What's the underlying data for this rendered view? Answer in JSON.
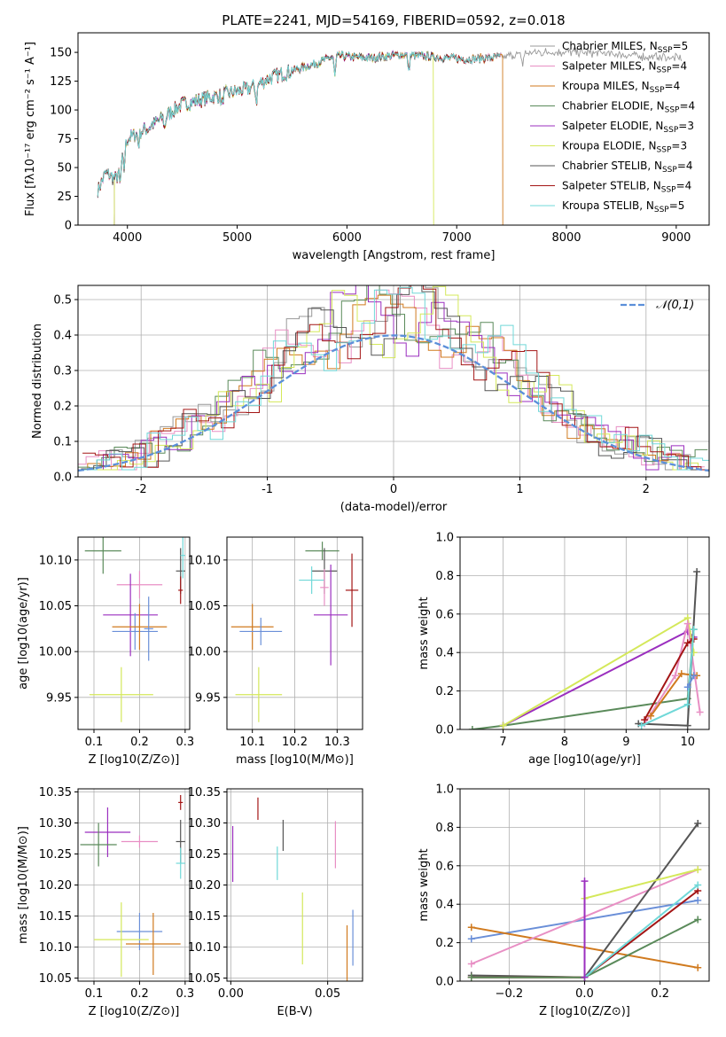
{
  "title": "PLATE=2241, MJD=54169, FIBERID=0592, z=0.018",
  "colors": {
    "Chabrier MILES": "#999999",
    "Salpeter MILES": "#e88fc4",
    "Kroupa MILES": "#d07a1e",
    "Chabrier ELODIE": "#5a8a5a",
    "Salpeter ELODIE": "#9b2fbf",
    "Kroupa ELODIE": "#d4e85a",
    "Chabrier STELIB": "#555555",
    "Salpeter STELIB": "#a31515",
    "Kroupa STELIB": "#70d8d8",
    "Chabrier MILES (wt)": "#6a8fd8",
    "normal": "#5b8fd9"
  },
  "chart_data": [
    {
      "id": "spectrum",
      "type": "line",
      "xlabel": "wavelength [Angstrom, rest frame]",
      "ylabel": "Flux [f_λ 10^-17 erg cm^-2 s^-1 A^-1]",
      "xlim": [
        3550,
        9300
      ],
      "ylim": [
        0,
        167
      ],
      "xticks": [
        4000,
        5000,
        6000,
        7000,
        8000,
        9000
      ],
      "yticks": [
        0,
        25,
        50,
        75,
        100,
        125,
        150
      ],
      "grid": false,
      "legend_position": "right",
      "series": [
        {
          "name": "Chabrier MILES, N_SSP=5",
          "color_key": "Chabrier MILES",
          "range": [
            3730,
            9050
          ]
        },
        {
          "name": "Salpeter MILES, N_SSP=4",
          "color_key": "Salpeter MILES",
          "range": [
            3730,
            7410
          ]
        },
        {
          "name": "Kroupa MILES, N_SSP=4",
          "color_key": "Kroupa MILES",
          "range": [
            3730,
            7420
          ],
          "drop_at": 7420
        },
        {
          "name": "Chabrier ELODIE, N_SSP=4",
          "color_key": "Chabrier ELODIE",
          "range": [
            3880,
            6790
          ]
        },
        {
          "name": "Salpeter ELODIE, N_SSP=3",
          "color_key": "Salpeter ELODIE",
          "range": [
            3880,
            6790
          ]
        },
        {
          "name": "Kroupa ELODIE, N_SSP=3",
          "color_key": "Kroupa ELODIE",
          "range": [
            3880,
            6790
          ],
          "drop_at": 6790
        },
        {
          "name": "Chabrier STELIB, N_SSP=4",
          "color_key": "Chabrier STELIB",
          "range": [
            3730,
            7400
          ]
        },
        {
          "name": "Salpeter STELIB, N_SSP=4",
          "color_key": "Salpeter STELIB",
          "range": [
            3730,
            7400
          ]
        },
        {
          "name": "Kroupa STELIB, N_SSP=5",
          "color_key": "Kroupa STELIB",
          "range": [
            3730,
            7400
          ]
        }
      ],
      "continuum_anchors": [
        [
          3730,
          30
        ],
        [
          3800,
          45
        ],
        [
          3900,
          40
        ],
        [
          4000,
          75
        ],
        [
          4200,
          85
        ],
        [
          4500,
          105
        ],
        [
          4800,
          112
        ],
        [
          5100,
          118
        ],
        [
          5300,
          128
        ],
        [
          5700,
          140
        ],
        [
          5900,
          147
        ],
        [
          6200,
          145
        ],
        [
          6500,
          148
        ],
        [
          6800,
          146
        ],
        [
          7100,
          144
        ],
        [
          7400,
          146
        ],
        [
          7700,
          150
        ],
        [
          8200,
          150
        ],
        [
          8600,
          147
        ],
        [
          9050,
          145
        ]
      ]
    },
    {
      "id": "residuals",
      "type": "line",
      "xlabel": "(data-model)/error",
      "ylabel": "Normed distribution",
      "xlim": [
        -2.5,
        2.5
      ],
      "ylim": [
        0,
        0.54
      ],
      "xticks": [
        -2,
        -1,
        0,
        1,
        2
      ],
      "yticks": [
        0.0,
        0.1,
        0.2,
        0.3,
        0.4,
        0.5
      ],
      "grid": true,
      "legend": [
        "𝒩(0,1)"
      ],
      "legend_position": "top-right",
      "gaussian": {
        "mean": 0,
        "sigma": 1
      }
    },
    {
      "id": "age-vs-Z",
      "type": "scatter",
      "xlabel": "Z [log10(Z/Z⊙)]",
      "ylabel": "age [log10(age/yr)]",
      "xlim": [
        0.065,
        0.31
      ],
      "ylim": [
        9.915,
        10.125
      ],
      "xticks": [
        0.1,
        0.2,
        0.3
      ],
      "yticks": [
        9.95,
        10.0,
        10.05,
        10.1
      ],
      "grid": true,
      "points": [
        {
          "c": "Chabrier ELODIE",
          "x": 0.12,
          "xe": 0.04,
          "y": 10.11,
          "ye": 0.025
        },
        {
          "c": "Salpeter MILES",
          "x": 0.2,
          "xe": 0.05,
          "y": 10.073,
          "ye": 0.015
        },
        {
          "c": "Salpeter ELODIE",
          "x": 0.18,
          "xe": 0.06,
          "y": 10.04,
          "ye": 0.045
        },
        {
          "c": "Chabrier MILES (wt)",
          "x": 0.19,
          "xe": 0.05,
          "y": 10.022,
          "ye": 0.02
        },
        {
          "c": "Kroupa MILES",
          "x": 0.2,
          "xe": 0.06,
          "y": 10.027,
          "ye": 0.025
        },
        {
          "c": "Chabrier MILES (wt)",
          "x": 0.22,
          "xe": 0.01,
          "y": 10.025,
          "ye": 0.035
        },
        {
          "c": "Kroupa ELODIE",
          "x": 0.16,
          "xe": 0.07,
          "y": 9.953,
          "ye": 0.03
        },
        {
          "c": "Chabrier STELIB",
          "x": 0.29,
          "xe": 0.01,
          "y": 10.088,
          "ye": 0.025
        },
        {
          "c": "Salpeter STELIB",
          "x": 0.29,
          "xe": 0.005,
          "y": 10.067,
          "ye": 0.015
        },
        {
          "c": "Kroupa STELIB",
          "x": 0.295,
          "xe": 0.005,
          "y": 10.105,
          "ye": 0.025
        }
      ]
    },
    {
      "id": "age-vs-mass",
      "type": "scatter",
      "xlabel": "mass [log10(M/M⊙)]",
      "ylabel": "",
      "xlim": [
        10.04,
        10.36
      ],
      "ylim": [
        9.915,
        10.125
      ],
      "xticks": [
        10.1,
        10.2,
        10.3
      ],
      "yticks": [
        9.95,
        10.0,
        10.05,
        10.1
      ],
      "grid": true,
      "points": [
        {
          "c": "Chabrier ELODIE",
          "x": 10.265,
          "xe": 0.04,
          "y": 10.11,
          "ye": 0.01
        },
        {
          "c": "Chabrier STELIB",
          "x": 10.27,
          "xe": 0.03,
          "y": 10.088,
          "ye": 0.025
        },
        {
          "c": "Kroupa STELIB",
          "x": 10.24,
          "xe": 0.03,
          "y": 10.078,
          "ye": 0.015
        },
        {
          "c": "Salpeter MILES",
          "x": 10.27,
          "xe": 0.01,
          "y": 10.07,
          "ye": 0.02
        },
        {
          "c": "Salpeter STELIB",
          "x": 10.335,
          "xe": 0.015,
          "y": 10.067,
          "ye": 0.04
        },
        {
          "c": "Salpeter ELODIE",
          "x": 10.285,
          "xe": 0.04,
          "y": 10.04,
          "ye": 0.055
        },
        {
          "c": "Kroupa MILES",
          "x": 10.1,
          "xe": 0.05,
          "y": 10.027,
          "ye": 0.025
        },
        {
          "c": "Chabrier MILES (wt)",
          "x": 10.12,
          "xe": 0.05,
          "y": 10.022,
          "ye": 0.015
        },
        {
          "c": "Kroupa ELODIE",
          "x": 10.115,
          "xe": 0.055,
          "y": 9.953,
          "ye": 0.03
        }
      ]
    },
    {
      "id": "mass-weight-vs-age",
      "type": "line",
      "xlabel": "age [log10(age/yr)]",
      "ylabel": "mass weight",
      "xlim": [
        6.3,
        10.35
      ],
      "ylim": [
        0,
        1.0
      ],
      "xticks": [
        7,
        8,
        9,
        10
      ],
      "yticks": [
        0.0,
        0.2,
        0.4,
        0.6,
        0.8,
        1.0
      ],
      "grid": true,
      "series": [
        {
          "c": "Chabrier ELODIE",
          "points": [
            [
              6.5,
              0.0
            ],
            [
              7.0,
              0.02
            ],
            [
              10.0,
              0.16
            ],
            [
              10.1,
              0.52
            ]
          ]
        },
        {
          "c": "Salpeter ELODIE",
          "points": [
            [
              7.0,
              0.02
            ],
            [
              10.0,
              0.51
            ],
            [
              10.1,
              0.48
            ]
          ]
        },
        {
          "c": "Kroupa ELODIE",
          "points": [
            [
              7.0,
              0.02
            ],
            [
              10.0,
              0.58
            ],
            [
              10.1,
              0.4
            ]
          ]
        },
        {
          "c": "Salpeter MILES",
          "points": [
            [
              9.3,
              0.03
            ],
            [
              9.8,
              0.28
            ],
            [
              10.0,
              0.55
            ],
            [
              10.2,
              0.09
            ]
          ]
        },
        {
          "c": "Kroupa MILES",
          "points": [
            [
              9.4,
              0.07
            ],
            [
              9.9,
              0.29
            ],
            [
              10.15,
              0.28
            ]
          ]
        },
        {
          "c": "Salpeter STELIB",
          "points": [
            [
              9.3,
              0.05
            ],
            [
              10.0,
              0.45
            ],
            [
              10.1,
              0.47
            ]
          ]
        },
        {
          "c": "Chabrier STELIB",
          "points": [
            [
              9.2,
              0.03
            ],
            [
              10.0,
              0.02
            ],
            [
              10.15,
              0.82
            ]
          ]
        },
        {
          "c": "Kroupa STELIB",
          "points": [
            [
              9.25,
              0.02
            ],
            [
              10.0,
              0.13
            ],
            [
              10.1,
              0.52
            ]
          ]
        },
        {
          "c": "Chabrier MILES (wt)",
          "points": [
            [
              10.0,
              0.22
            ],
            [
              10.1,
              0.28
            ]
          ]
        }
      ]
    },
    {
      "id": "mass-vs-Z",
      "type": "scatter",
      "xlabel": "Z [log10(Z/Z⊙)]",
      "ylabel": "mass [log10(M/M⊙)]",
      "xlim": [
        0.065,
        0.31
      ],
      "ylim": [
        10.045,
        10.355
      ],
      "xticks": [
        0.1,
        0.2,
        0.3
      ],
      "yticks": [
        10.05,
        10.1,
        10.15,
        10.2,
        10.25,
        10.3,
        10.35
      ],
      "grid": true,
      "points": [
        {
          "c": "Salpeter ELODIE",
          "x": 0.13,
          "xe": 0.05,
          "y": 10.285,
          "ye": 0.04
        },
        {
          "c": "Chabrier ELODIE",
          "x": 0.11,
          "xe": 0.04,
          "y": 10.265,
          "ye": 0.035
        },
        {
          "c": "Salpeter MILES",
          "x": 0.2,
          "xe": 0.04,
          "y": 10.27,
          "ye": 0.01
        },
        {
          "c": "Chabrier STELIB",
          "x": 0.29,
          "xe": 0.01,
          "y": 10.27,
          "ye": 0.035
        },
        {
          "c": "Salpeter STELIB",
          "x": 0.29,
          "xe": 0.005,
          "y": 10.333,
          "ye": 0.012
        },
        {
          "c": "Kroupa STELIB",
          "x": 0.29,
          "xe": 0.01,
          "y": 10.235,
          "ye": 0.025
        },
        {
          "c": "Chabrier MILES (wt)",
          "x": 0.2,
          "xe": 0.05,
          "y": 10.125,
          "ye": 0.03
        },
        {
          "c": "Kroupa ELODIE",
          "x": 0.16,
          "xe": 0.06,
          "y": 10.112,
          "ye": 0.06
        },
        {
          "c": "Kroupa MILES",
          "x": 0.23,
          "xe": 0.06,
          "y": 10.105,
          "ye": 0.05
        }
      ]
    },
    {
      "id": "mass-vs-EBV",
      "type": "scatter",
      "xlabel": "E(B-V)",
      "ylabel": "",
      "xlim": [
        -0.002,
        0.068
      ],
      "ylim": [
        10.045,
        10.355
      ],
      "xticks": [
        0.0,
        0.05
      ],
      "yticks": [
        10.05,
        10.1,
        10.15,
        10.2,
        10.25,
        10.3,
        10.35
      ],
      "grid": true,
      "points": [
        {
          "c": "Salpeter ELODIE",
          "x": 0.001,
          "xe": 0,
          "y": 10.25,
          "ye": 0.045
        },
        {
          "c": "Salpeter STELIB",
          "x": 0.014,
          "xe": 0,
          "y": 10.323,
          "ye": 0.018
        },
        {
          "c": "Chabrier STELIB",
          "x": 0.027,
          "xe": 0,
          "y": 10.28,
          "ye": 0.025
        },
        {
          "c": "Kroupa STELIB",
          "x": 0.024,
          "xe": 0,
          "y": 10.235,
          "ye": 0.027
        },
        {
          "c": "Salpeter MILES",
          "x": 0.054,
          "xe": 0,
          "y": 10.265,
          "ye": 0.038
        },
        {
          "c": "Kroupa ELODIE",
          "x": 0.037,
          "xe": 0,
          "y": 10.13,
          "ye": 0.058
        },
        {
          "c": "Kroupa MILES",
          "x": 0.06,
          "xe": 0,
          "y": 10.09,
          "ye": 0.045
        },
        {
          "c": "Chabrier MILES (wt)",
          "x": 0.063,
          "xe": 0,
          "y": 10.115,
          "ye": 0.045
        }
      ]
    },
    {
      "id": "mass-weight-vs-Z",
      "type": "line",
      "xlabel": "Z [log10(Z/Z⊙)]",
      "ylabel": "mass weight",
      "xlim": [
        -0.33,
        0.33
      ],
      "ylim": [
        0,
        1.0
      ],
      "xticks": [
        -0.2,
        0.0,
        0.2
      ],
      "yticks": [
        0.0,
        0.2,
        0.4,
        0.6,
        0.8,
        1.0
      ],
      "grid": true,
      "series": [
        {
          "c": "Chabrier MILES (wt)",
          "points": [
            [
              -0.3,
              0.22
            ],
            [
              0.3,
              0.42
            ]
          ]
        },
        {
          "c": "Kroupa MILES",
          "points": [
            [
              -0.3,
              0.28
            ],
            [
              0.3,
              0.07
            ]
          ]
        },
        {
          "c": "Salpeter MILES",
          "points": [
            [
              -0.3,
              0.09
            ],
            [
              0.3,
              0.58
            ]
          ]
        },
        {
          "c": "Chabrier STELIB",
          "points": [
            [
              -0.3,
              0.03
            ],
            [
              0.0,
              0.02
            ],
            [
              0.3,
              0.82
            ]
          ]
        },
        {
          "c": "Salpeter STELIB",
          "points": [
            [
              -0.3,
              0.02
            ],
            [
              0.0,
              0.02
            ],
            [
              0.3,
              0.47
            ]
          ]
        },
        {
          "c": "Chabrier ELODIE",
          "points": [
            [
              -0.3,
              0.02
            ],
            [
              0.0,
              0.02
            ],
            [
              0.3,
              0.32
            ]
          ]
        },
        {
          "c": "Kroupa ELODIE",
          "points": [
            [
              0.0,
              0.02
            ],
            [
              0.0,
              0.43
            ],
            [
              0.3,
              0.58
            ]
          ]
        },
        {
          "c": "Kroupa STELIB",
          "points": [
            [
              0.0,
              0.02
            ],
            [
              0.3,
              0.5
            ]
          ]
        },
        {
          "c": "Salpeter ELODIE",
          "points": [
            [
              0.0,
              0.52
            ],
            [
              0.0,
              0.02
            ]
          ]
        }
      ]
    }
  ]
}
